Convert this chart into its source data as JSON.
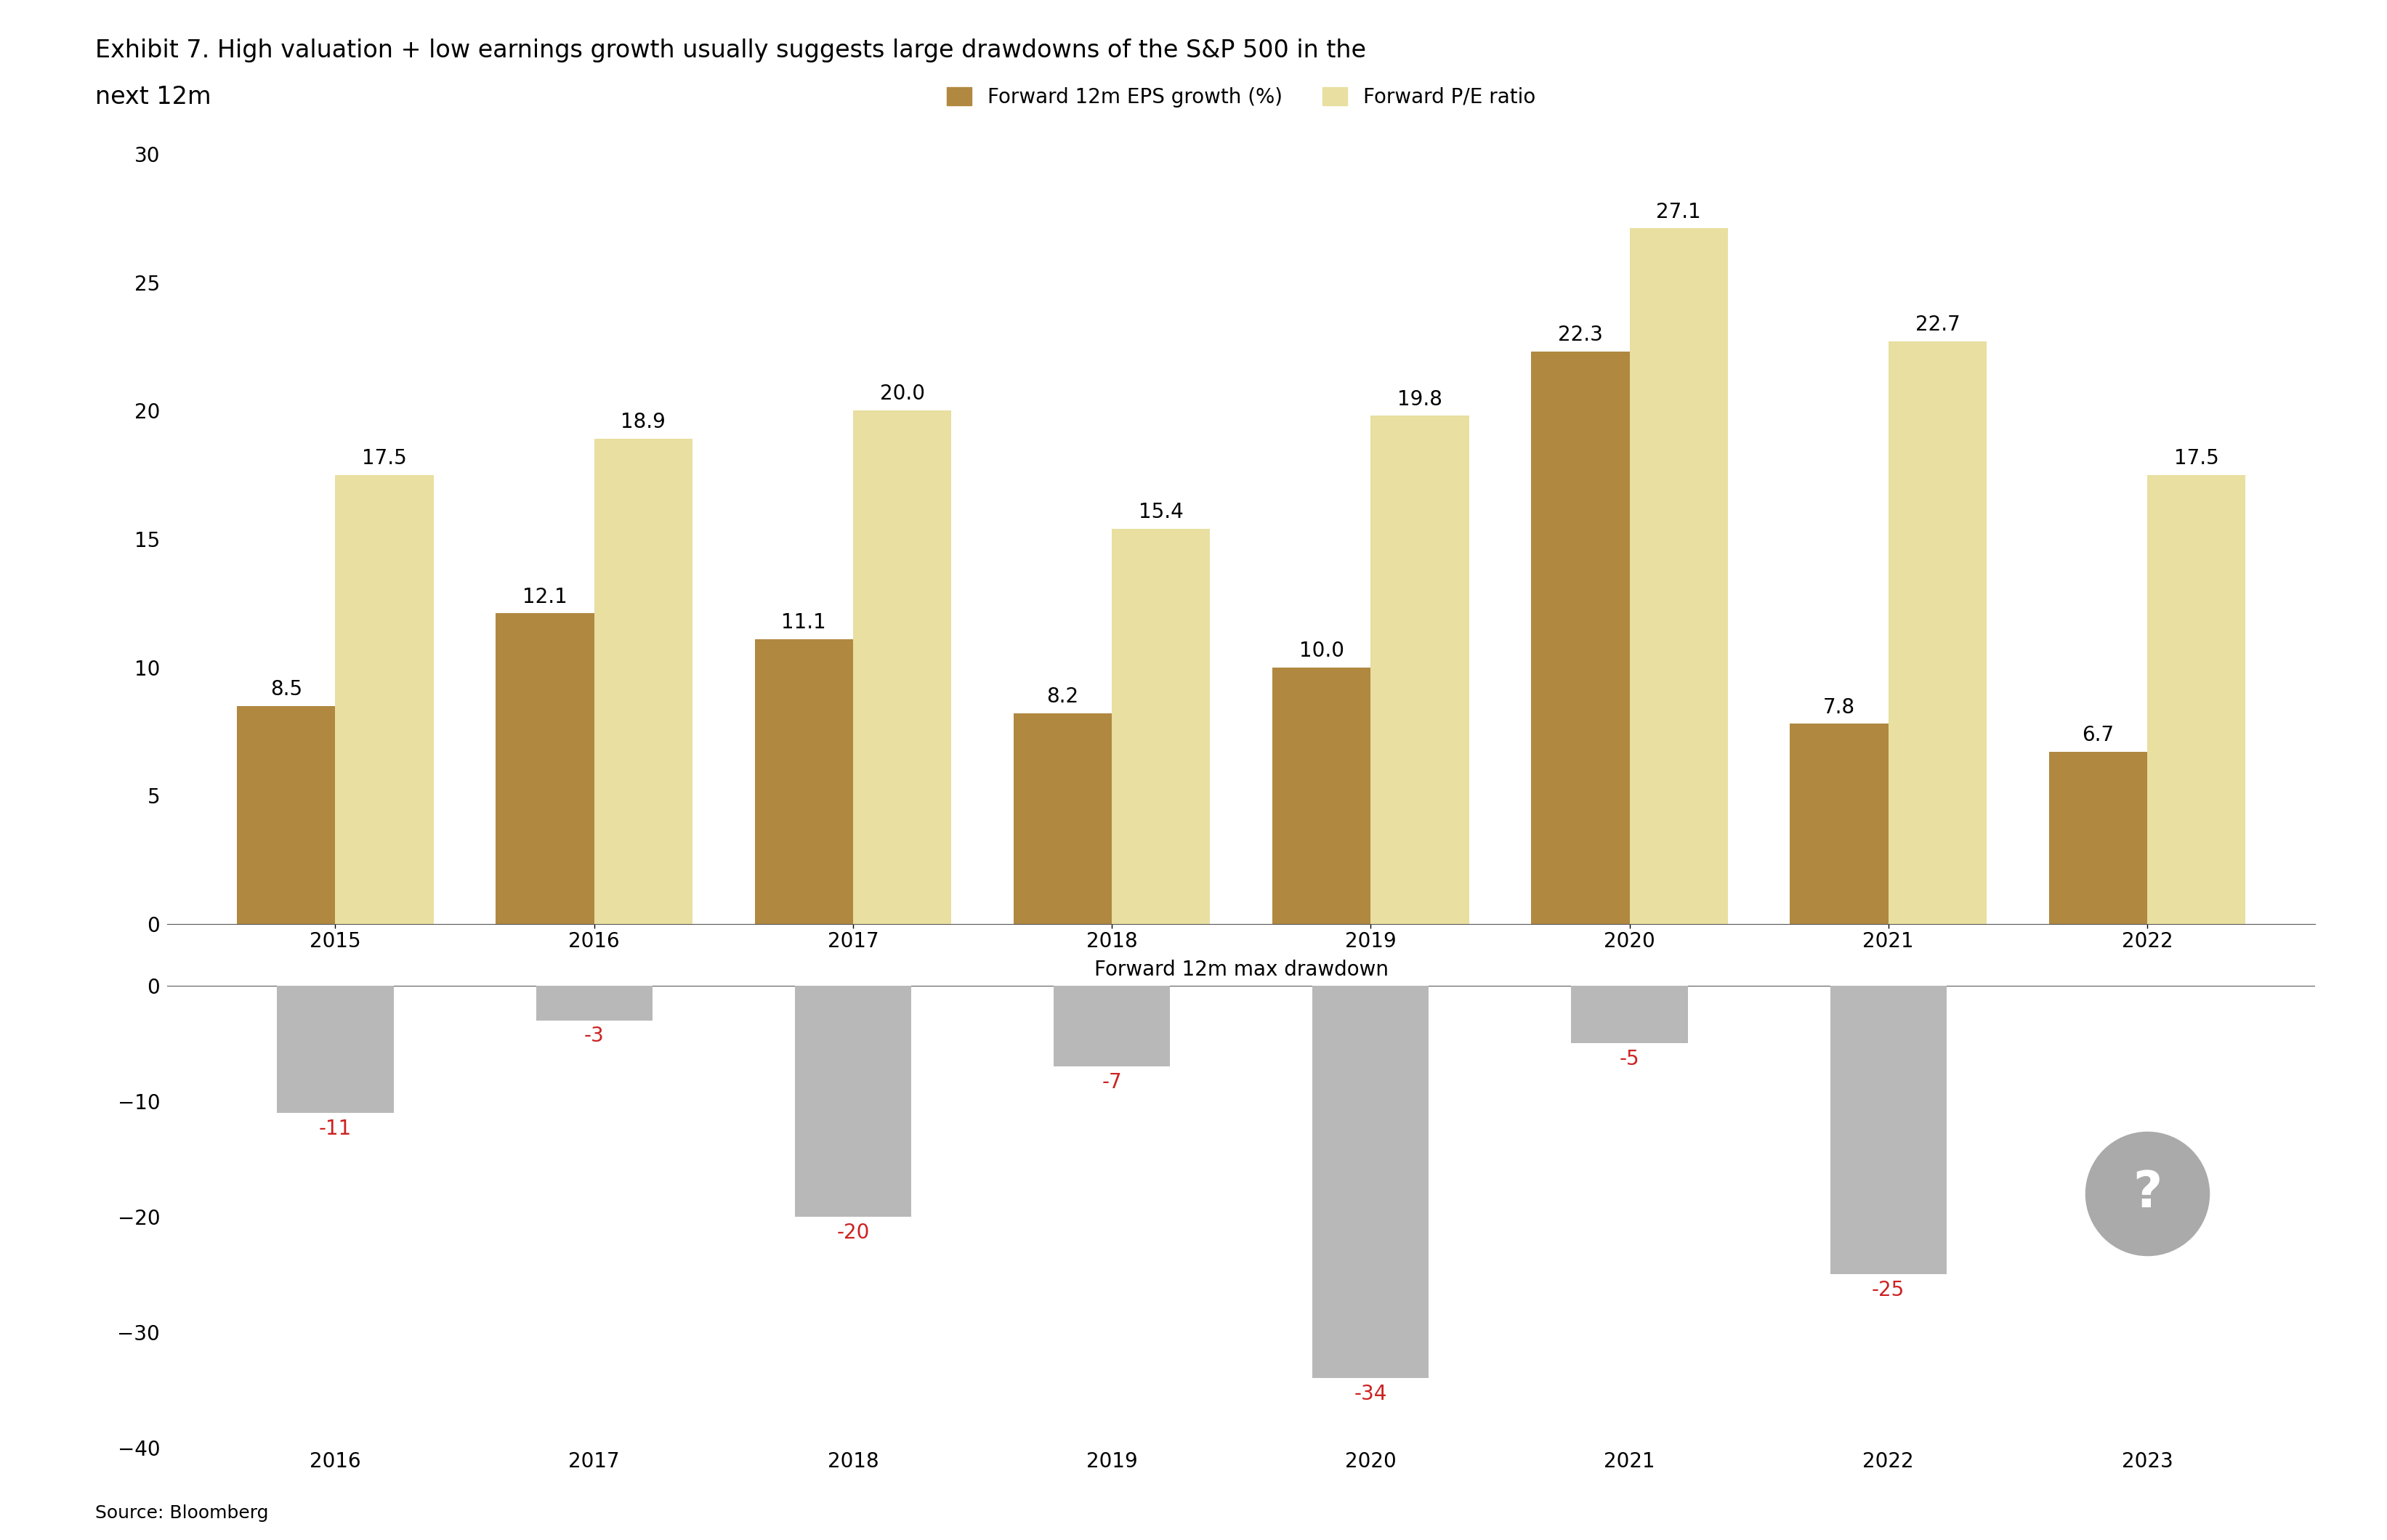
{
  "title_line1": "Exhibit 7. High valuation + low earnings growth usually suggests large drawdowns of the S&P 500 in the",
  "title_line2": "next 12m",
  "source": "Source: Bloomberg",
  "top_chart": {
    "categories": [
      "2015",
      "2016",
      "2017",
      "2018",
      "2019",
      "2020",
      "2021",
      "2022"
    ],
    "eps_growth": [
      8.5,
      12.1,
      11.1,
      8.2,
      10.0,
      22.3,
      7.8,
      6.7
    ],
    "pe_ratio": [
      17.5,
      18.9,
      20.0,
      15.4,
      19.8,
      27.1,
      22.7,
      17.5
    ],
    "eps_color": "#b08840",
    "pe_color": "#e8dfa0",
    "ylim": [
      0,
      30
    ],
    "yticks": [
      0,
      5,
      10,
      15,
      20,
      25,
      30
    ],
    "legend_eps": "Forward 12m EPS growth (%)",
    "legend_pe": "Forward P/E ratio"
  },
  "bottom_chart": {
    "categories": [
      "2016",
      "2017",
      "2018",
      "2019",
      "2020",
      "2021",
      "2022",
      "2023"
    ],
    "drawdown": [
      -11,
      -3,
      -20,
      -7,
      -34,
      -5,
      -25,
      null
    ],
    "bar_color": "#b8b8b8",
    "label_color": "#cc2222",
    "ylim": [
      -40,
      0
    ],
    "yticks": [
      0,
      -10,
      -20,
      -30,
      -40
    ],
    "title": "Forward 12m max drawdown",
    "question_mark_color": "#aaaaaa"
  },
  "background_color": "#ffffff",
  "title_fontsize": 24,
  "label_fontsize": 20,
  "tick_fontsize": 20,
  "annotation_fontsize": 20,
  "legend_fontsize": 20,
  "source_fontsize": 18
}
